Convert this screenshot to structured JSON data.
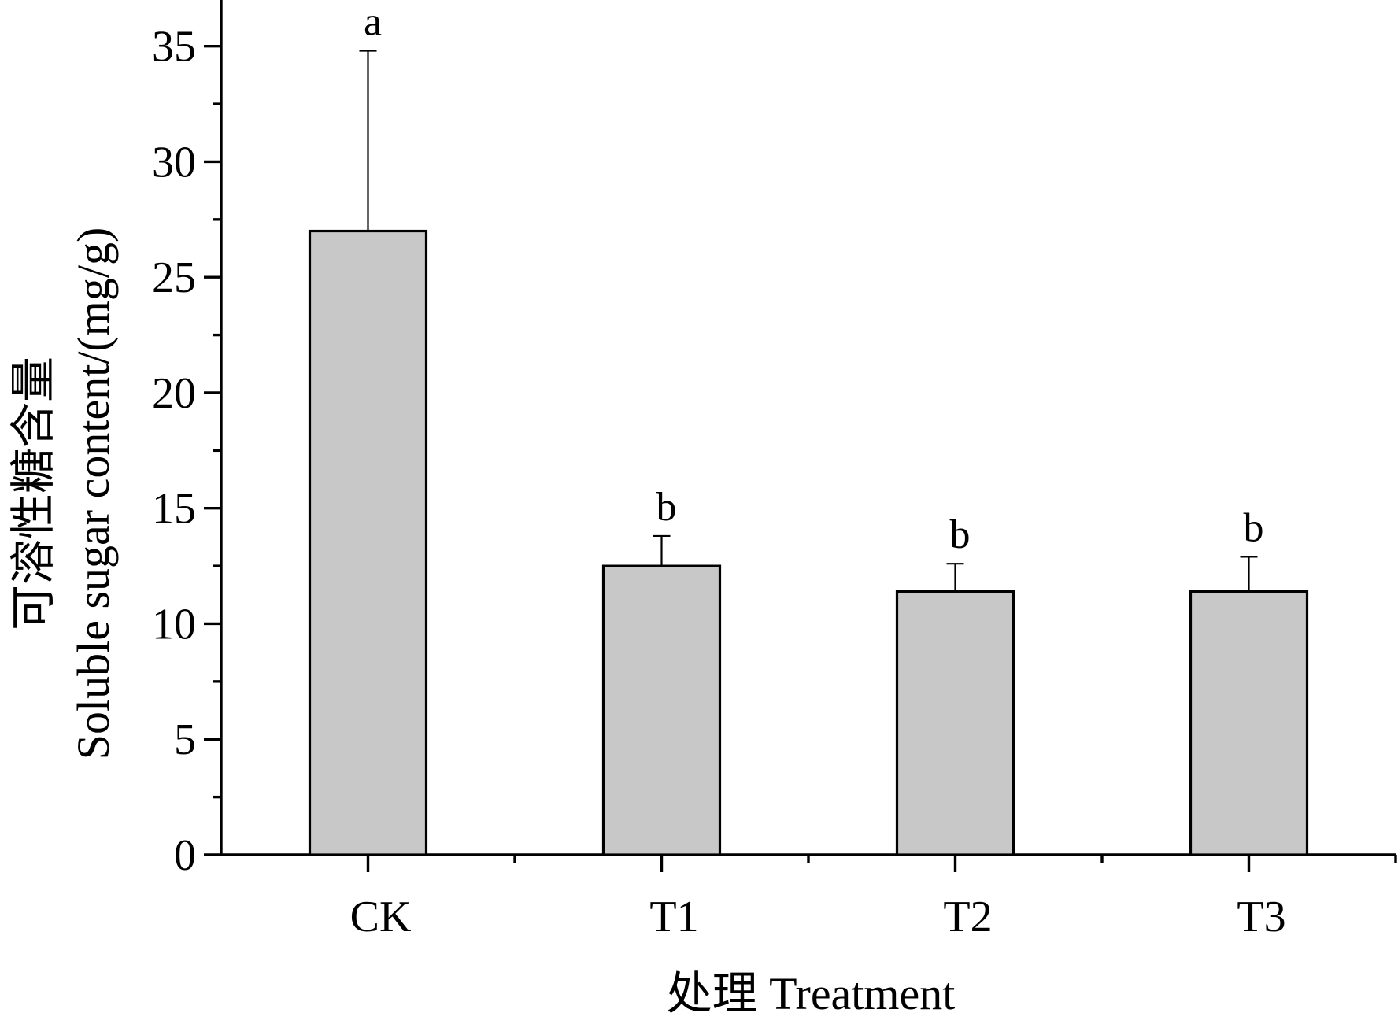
{
  "chart_data": {
    "type": "bar",
    "categories": [
      "CK",
      "T1",
      "T2",
      "T3"
    ],
    "values": [
      27.0,
      12.5,
      11.4,
      11.4
    ],
    "errors": [
      7.8,
      1.3,
      1.2,
      1.5
    ],
    "significance": [
      "a",
      "b",
      "b",
      "b"
    ],
    "title": "",
    "xlabel": "处理 Treatment",
    "ylabel_cn": "可溶性糖含量",
    "ylabel_en": "Soluble sugar content/(mg/g)",
    "ylim": [
      0,
      37
    ],
    "yticks": [
      0,
      5,
      10,
      15,
      20,
      25,
      30,
      35
    ],
    "bar_color": "#c8c8c8",
    "grid": false,
    "legend": "none"
  }
}
